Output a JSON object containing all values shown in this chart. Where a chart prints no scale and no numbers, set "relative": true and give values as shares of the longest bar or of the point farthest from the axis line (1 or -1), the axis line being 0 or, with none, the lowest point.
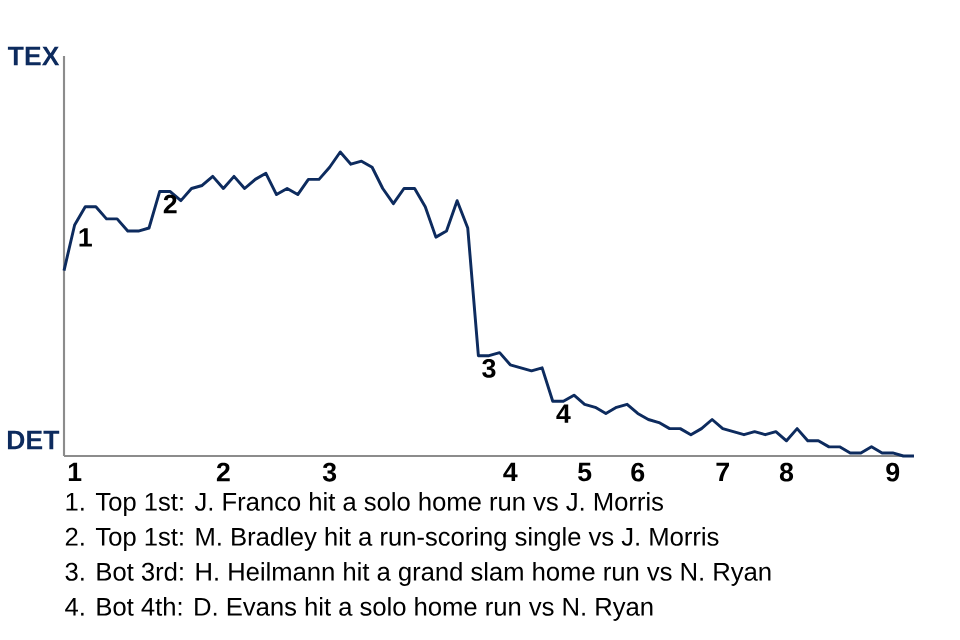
{
  "chart_data": {
    "type": "line",
    "relative": true,
    "categories": [
      null,
      "1",
      null,
      null,
      null,
      null,
      null,
      null,
      null,
      null,
      null,
      null,
      null,
      null,
      null,
      "2",
      null,
      null,
      null,
      null,
      null,
      null,
      null,
      null,
      null,
      "3",
      null,
      null,
      null,
      null,
      null,
      null,
      null,
      null,
      null,
      null,
      null,
      null,
      null,
      null,
      null,
      null,
      "4",
      null,
      null,
      null,
      null,
      null,
      null,
      "5",
      null,
      null,
      null,
      null,
      "6",
      null,
      null,
      null,
      null,
      null,
      null,
      null,
      "7",
      null,
      null,
      null,
      null,
      null,
      "8",
      null,
      null,
      null,
      null,
      null,
      null,
      null,
      null,
      null,
      "9",
      null,
      null
    ],
    "marker": "none",
    "line_style": "solid",
    "series": [
      {
        "color": "#0d2b5e",
        "values": [
          0.61,
          0.76,
          0.82,
          0.82,
          0.78,
          0.78,
          0.74,
          0.74,
          0.75,
          0.87,
          0.87,
          0.84,
          0.88,
          0.89,
          0.92,
          0.88,
          0.92,
          0.88,
          0.91,
          0.93,
          0.86,
          0.88,
          0.86,
          0.91,
          0.91,
          0.95,
          1,
          0.96,
          0.97,
          0.95,
          0.88,
          0.83,
          0.88,
          0.88,
          0.82,
          0.72,
          0.74,
          0.84,
          0.75,
          0.33,
          0.33,
          0.34,
          0.3,
          0.29,
          0.28,
          0.29,
          0.18,
          0.18,
          0.2,
          0.17,
          0.16,
          0.14,
          0.16,
          0.17,
          0.14,
          0.12,
          0.11,
          0.09,
          0.09,
          0.07,
          0.09,
          0.12,
          0.09,
          0.08,
          0.07,
          0.08,
          0.07,
          0.08,
          0.05,
          0.09,
          0.05,
          0.05,
          0.03,
          0.03,
          0.01,
          0.01,
          0.03,
          0.01,
          0.01,
          0,
          0
        ]
      }
    ],
    "annotations": [
      {
        "text": "1",
        "y": 0.76
      },
      {
        "text": "2",
        "y": 0.87
      },
      {
        "text": "3",
        "y": 0.33
      },
      {
        "text": "4",
        "y": 0.18
      },
      "TEX",
      "DET",
      "1. Top 1st: J. Franco hit a solo home run vs J. Morris",
      "2. Top 1st: M. Bradley hit a run-scoring single vs J. Morris",
      "3. Bot 3rd: H. Heilmann hit a grand slam home run vs N. Ryan",
      "4. Bot 4th: D. Evans hit a solo home run vs N. Ryan"
    ]
  }
}
